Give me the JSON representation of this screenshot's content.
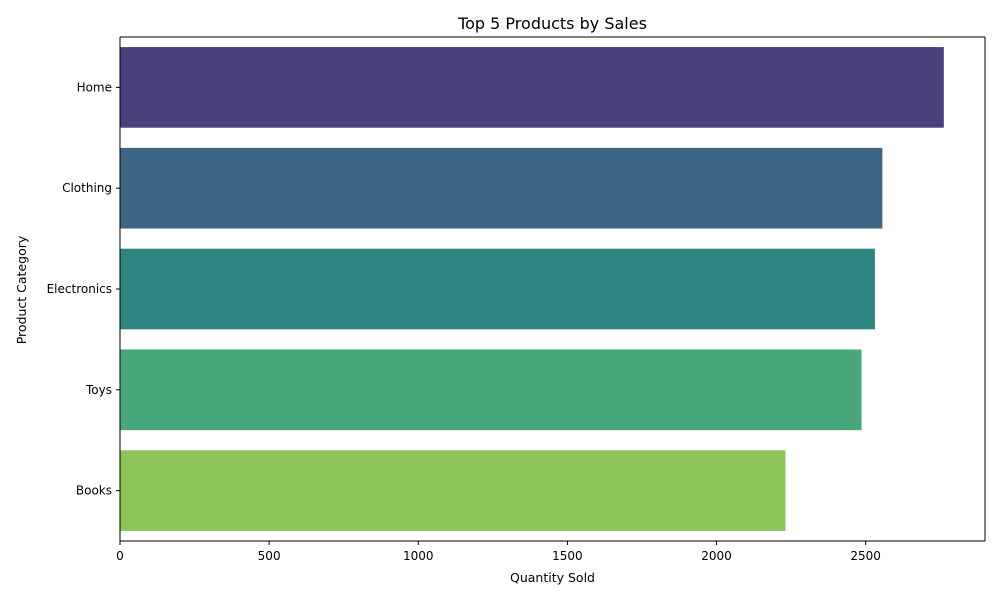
{
  "chart_data": {
    "type": "bar",
    "orientation": "horizontal",
    "title": "Top 5 Products by Sales",
    "xlabel": "Quantity Sold",
    "ylabel": "Product Category",
    "categories": [
      "Home",
      "Clothing",
      "Electronics",
      "Toys",
      "Books"
    ],
    "values": [
      2762,
      2556,
      2531,
      2486,
      2231
    ],
    "colors": [
      "#4b3f7d",
      "#3e6585",
      "#2e8481",
      "#47a778",
      "#8ec558"
    ],
    "xlim": [
      0,
      2900
    ],
    "xticks": [
      0,
      500,
      1000,
      1500,
      2000,
      2500
    ],
    "grid": false,
    "legend": "none"
  }
}
